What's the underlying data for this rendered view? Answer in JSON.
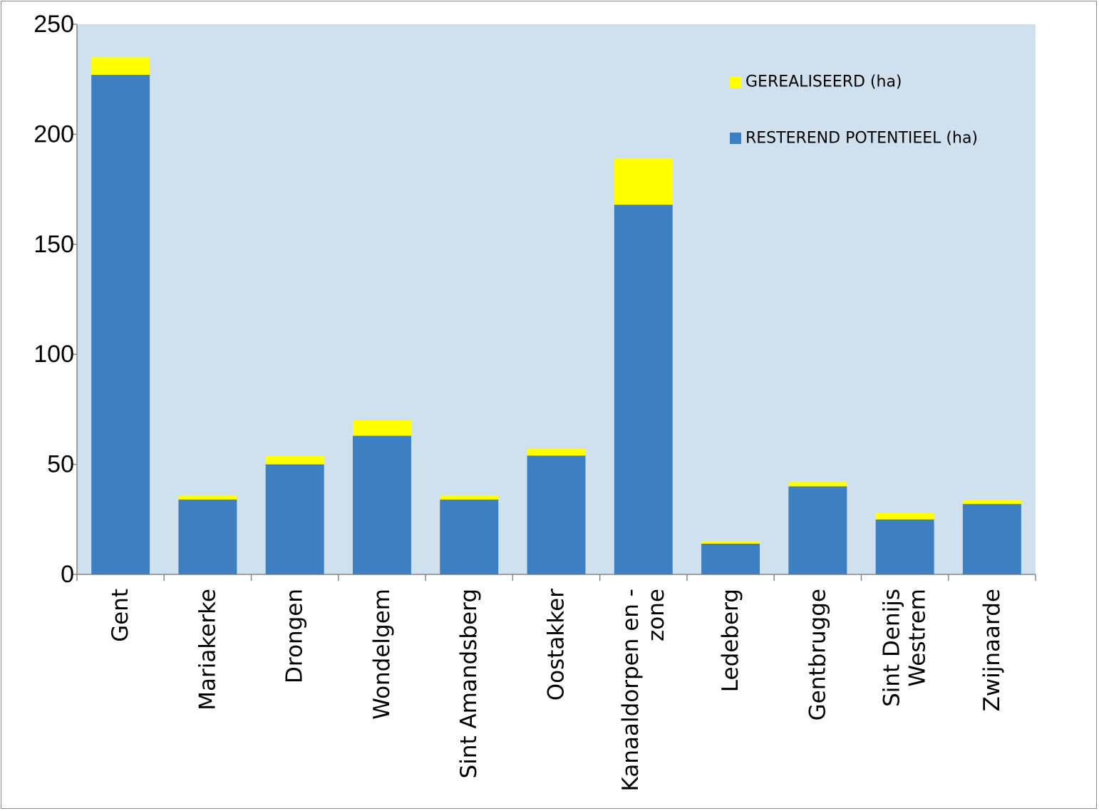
{
  "chart_data": {
    "type": "bar",
    "stacked": true,
    "title": "",
    "xlabel": "",
    "ylabel": "",
    "ylim": [
      0,
      250
    ],
    "yticks": [
      0,
      50,
      100,
      150,
      200,
      250
    ],
    "grid": false,
    "legend_position": "top-right",
    "background_color": "#cfe0ee",
    "categories": [
      [
        "Gent"
      ],
      [
        "Mariakerke"
      ],
      [
        "Drongen"
      ],
      [
        "Wondelgem"
      ],
      [
        "Sint Amandsberg"
      ],
      [
        "Oostakker"
      ],
      [
        "Kanaaldorpen en -",
        "zone"
      ],
      [
        "Ledeberg"
      ],
      [
        "Gentbrugge"
      ],
      [
        "Sint Denijs",
        "Westrem"
      ],
      [
        "Zwijnaarde"
      ]
    ],
    "series": [
      {
        "name": "RESTEREND POTENTIEEL (ha)",
        "color": "#3d7fc1",
        "values": [
          227,
          34,
          50,
          63,
          34,
          54,
          168,
          14,
          40,
          25,
          32
        ]
      },
      {
        "name": "GEREALISEERD (ha)",
        "color": "#ffff00",
        "values": [
          8,
          2,
          4,
          7,
          2,
          3,
          21,
          1,
          2,
          3,
          2
        ]
      }
    ],
    "legend_order": [
      1,
      0
    ]
  }
}
